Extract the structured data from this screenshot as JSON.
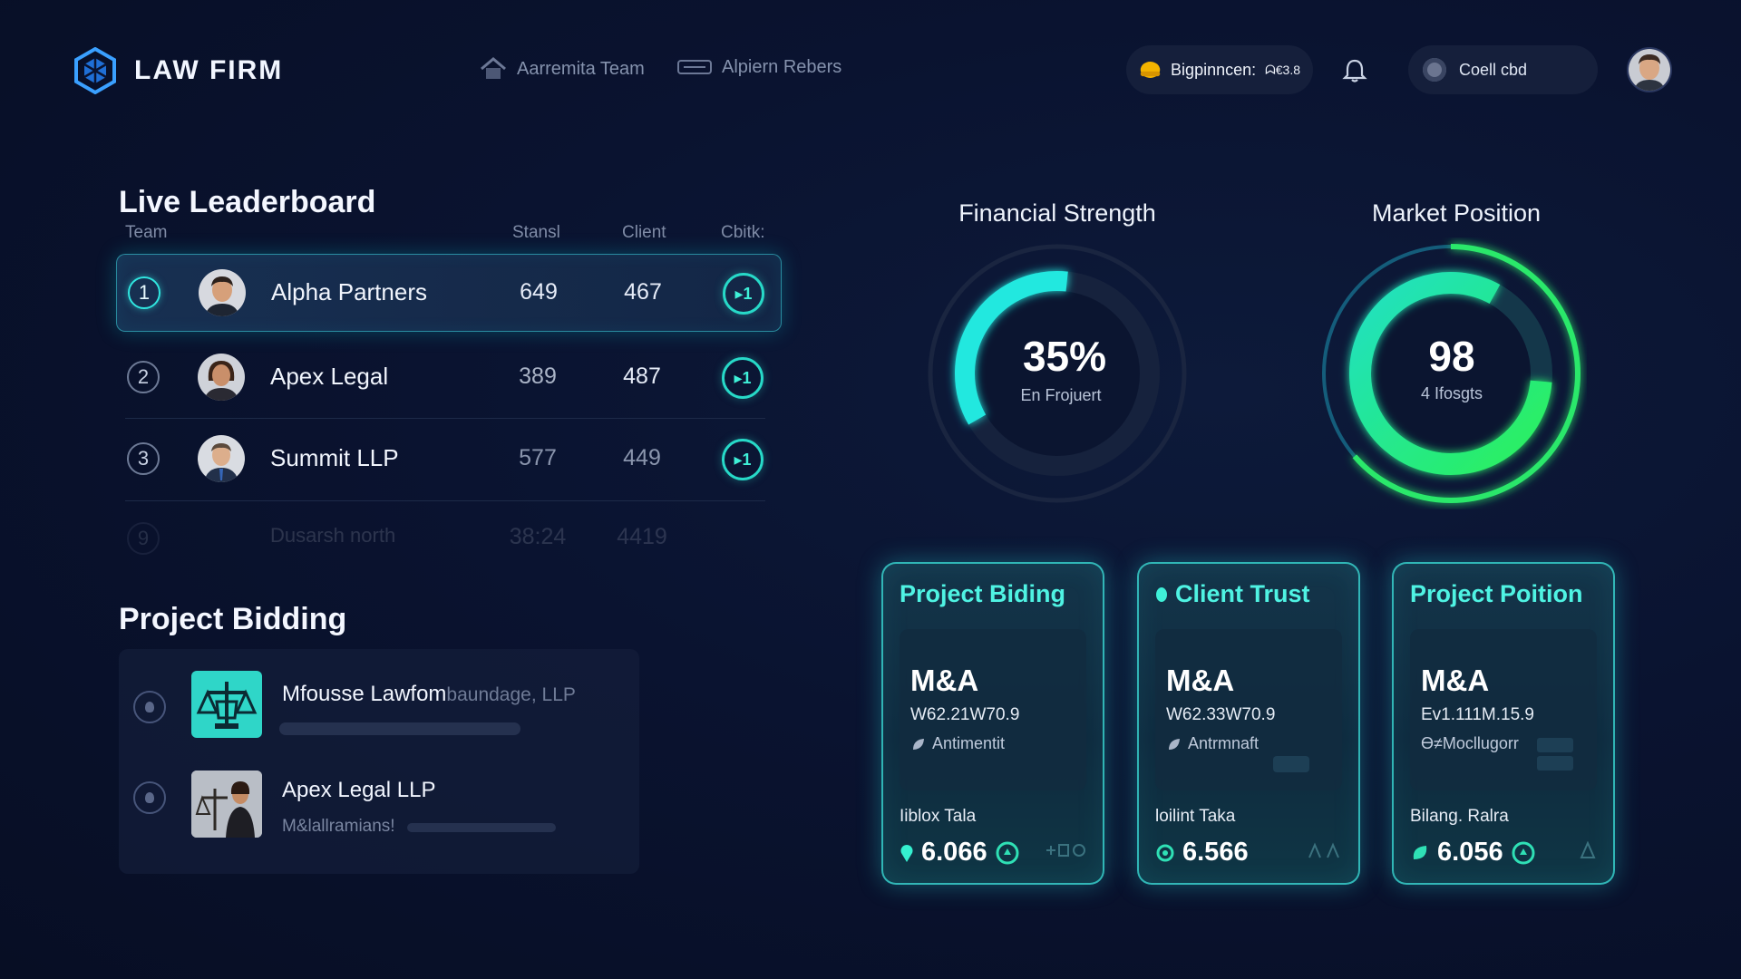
{
  "header": {
    "brand": "LAW FIRM",
    "nav": [
      {
        "label": "Aarremita Team",
        "icon": "house-icon"
      },
      {
        "label": "Alpiern Rebers",
        "icon": "card-icon"
      }
    ],
    "status_pill": {
      "label": "Bigpinncen:",
      "value": "ᗣ€3.8",
      "icon": "coin-icon"
    },
    "notifications_icon": "bell-icon",
    "search_pill": {
      "label": "Coell cbd",
      "icon": "toggle-icon"
    }
  },
  "leaderboard": {
    "title": "Live Leaderboard",
    "columns": {
      "team": "Team",
      "stand": "Stansl",
      "client": "Client",
      "check": "Cbitk:"
    },
    "rows": [
      {
        "rank": "1",
        "name": "Alpha Partners",
        "stand": "649",
        "client": "467",
        "badge": "▸1"
      },
      {
        "rank": "2",
        "name": "Apex Legal",
        "stand": "389",
        "client": "487",
        "badge": "▸1"
      },
      {
        "rank": "3",
        "name": "Summit LLP",
        "stand": "577",
        "client": "449",
        "badge": "▸1"
      },
      {
        "rank": "9",
        "name": "Dusarsh north",
        "stand": "38:24",
        "client": "4419",
        "badge": ""
      }
    ]
  },
  "bidding": {
    "title": "Project Bidding",
    "items": [
      {
        "title": "Mfousse Lawfom",
        "title_suffix": "baundage, LLP",
        "sub": ""
      },
      {
        "title": "Apex Legal LLP",
        "title_suffix": "",
        "sub": "M&lallramians!"
      }
    ]
  },
  "gauges": {
    "financial": {
      "title": "Financial Strength",
      "value": "35%",
      "label": "En Frojuert",
      "fraction": 0.35
    },
    "market": {
      "title": "Market Position",
      "value": "98",
      "label": "4 Ifosgts",
      "fraction": 0.98
    }
  },
  "cards": [
    {
      "title": "Project Biding",
      "ma": "M&A",
      "value": "W62.21W70.9",
      "tag": "Antimentit",
      "foot": "Iiblox Tala",
      "score": "6.066"
    },
    {
      "title": "Client Trust",
      "ma": "M&A",
      "value": "W62.33W70.9",
      "tag": "Antrmnaft",
      "foot": "loilint Taka",
      "score": "6.566"
    },
    {
      "title": "Project Poition",
      "ma": "M&A",
      "value": "Ev1.111M.15.9",
      "tag": "Ɵ≠Mocllugorr",
      "foot": "Bilang. Ralra",
      "score": "6.056"
    }
  ],
  "colors": {
    "accent_teal": "#2fe6dc",
    "accent_green": "#29e85a",
    "background": "#0a1330"
  }
}
